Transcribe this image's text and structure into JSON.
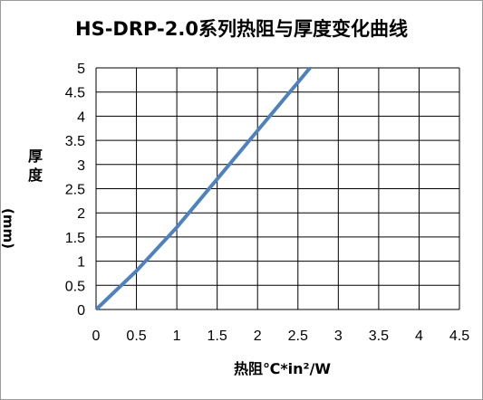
{
  "chart_data": {
    "type": "line",
    "title": "HS-DRP-2.0系列热阻与厚度变化曲线",
    "ylabel_main": "厚度",
    "ylabel_unit": "(mm)",
    "xlabel": "热阻℃*in²/W",
    "xlim": [
      0,
      4.5
    ],
    "ylim": [
      0,
      5
    ],
    "x_ticks": [
      "0",
      "0.5",
      "1",
      "1.5",
      "2",
      "2.5",
      "3",
      "3.5",
      "4",
      "4.5"
    ],
    "y_ticks": [
      "0",
      "0.5",
      "1",
      "1.5",
      "2",
      "2.5",
      "3",
      "3.5",
      "4",
      "4.5",
      "5"
    ],
    "grid": true,
    "series": [
      {
        "color": "#4f81bd",
        "x": [
          0,
          0.5,
          1.0,
          1.5,
          2.0,
          2.5,
          2.65
        ],
        "y": [
          0,
          0.8,
          1.7,
          2.7,
          3.7,
          4.7,
          5.0
        ]
      }
    ]
  }
}
